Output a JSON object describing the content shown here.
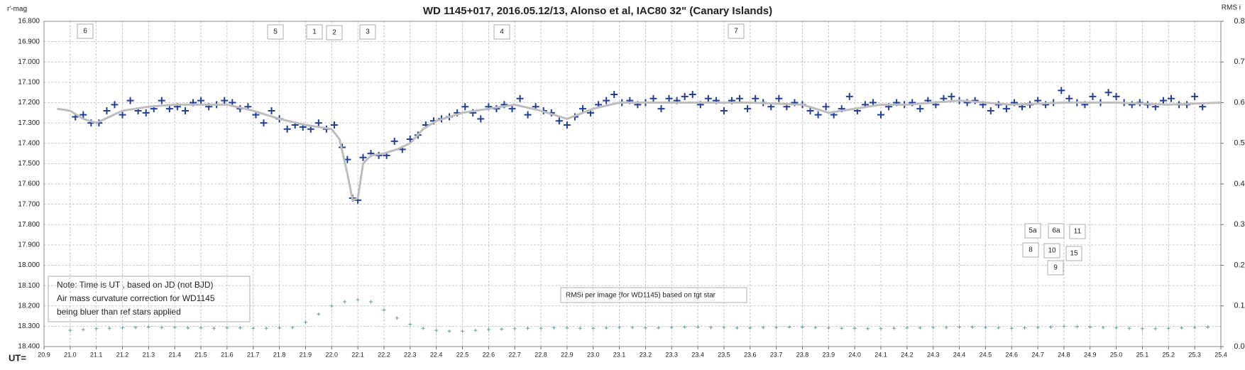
{
  "chart_data": {
    "type": "scatter",
    "title": "WD 1145+017,  2016.05.12/13,  Alonso  et al, IAC80  32\" (Canary Islands)",
    "y_label": "r'-mag",
    "y2_label": "RMS i",
    "x_label": "UT=",
    "note": [
      "Note: Time is UT , based on JD (not BJD)",
      "Air mass  curvature correction for WD1145",
      "being bluer than ref stars applied"
    ],
    "annotations": [
      "6",
      "5",
      "1",
      "2",
      "3",
      "4",
      "7",
      "5a",
      "6a",
      "11",
      "8",
      "10",
      "15",
      "9"
    ],
    "xlim": [
      20.9,
      25.4
    ],
    "xticks": [
      20.9,
      {
        "value": 21,
        "label": "21.0"
      },
      21.1,
      21.2,
      21.3,
      21.4,
      21.5,
      21.6,
      21.7,
      21.8,
      21.9,
      {
        "value": 22,
        "label": "22.0"
      },
      22.1,
      22.2,
      22.3,
      22.4,
      22.5,
      22.6,
      22.7,
      22.8,
      22.9,
      {
        "value": 23,
        "label": "23.0"
      },
      23.1,
      23.2,
      23.3,
      23.4,
      23.5,
      23.6,
      23.7,
      23.8,
      23.9,
      {
        "value": 24,
        "label": "24.0"
      },
      24.1,
      24.2,
      24.3,
      24.4,
      24.5,
      24.6,
      24.7,
      24.8,
      24.9,
      {
        "value": 25,
        "label": "25.0"
      },
      25.1,
      25.2,
      25.3,
      25.4
    ],
    "ylim": [
      18.4,
      16.8
    ],
    "yticks": [
      {
        "value": 16.8,
        "label": "16.800"
      },
      {
        "value": 16.9,
        "label": "16.900"
      },
      {
        "value": 17,
        "label": "17.000"
      },
      {
        "value": 17.1,
        "label": "17.100"
      },
      {
        "value": 17.2,
        "label": "17.200"
      },
      {
        "value": 17.3,
        "label": "17.300"
      },
      {
        "value": 17.4,
        "label": "17.400"
      },
      {
        "value": 17.5,
        "label": "17.500"
      },
      {
        "value": 17.6,
        "label": "17.600"
      },
      {
        "value": 17.7,
        "label": "17.700"
      },
      {
        "value": 17.8,
        "label": "17.800"
      },
      {
        "value": 17.9,
        "label": "17.900"
      },
      {
        "value": 18,
        "label": "18.000"
      },
      {
        "value": 18.1,
        "label": "18.100"
      },
      {
        "value": 18.2,
        "label": "18.200"
      },
      {
        "value": 18.3,
        "label": "18.300"
      },
      {
        "value": 18.4,
        "label": "18.400"
      }
    ],
    "y2lim": [
      0,
      0.8
    ],
    "y2ticks": [
      {
        "value": 0,
        "label": "0.0"
      },
      0.1,
      0.2,
      0.3,
      0.4,
      0.5,
      0.6,
      0.7,
      0.8
    ],
    "grid": true,
    "series": [
      {
        "color": "#1f3f9a",
        "marker": "cross",
        "x": [
          21.02,
          21.05,
          21.08,
          21.11,
          21.14,
          21.17,
          21.2,
          21.23,
          21.26,
          21.29,
          21.32,
          21.35,
          21.38,
          21.41,
          21.44,
          21.47,
          21.5,
          21.53,
          21.56,
          21.59,
          21.62,
          21.65,
          21.68,
          21.71,
          21.74,
          21.77,
          21.8,
          21.83,
          21.86,
          21.89,
          21.92,
          21.95,
          21.98,
          22.01,
          22.04,
          22.06,
          22.08,
          22.1,
          22.12,
          22.15,
          22.18,
          22.21,
          22.24,
          22.27,
          22.3,
          22.33,
          22.36,
          22.39,
          22.42,
          22.45,
          22.48,
          22.51,
          22.54,
          22.57,
          22.6,
          22.63,
          22.66,
          22.69,
          22.72,
          22.75,
          22.78,
          22.81,
          22.84,
          22.87,
          22.9,
          22.93,
          22.96,
          22.99,
          23.02,
          23.05,
          23.08,
          23.11,
          23.14,
          23.17,
          23.2,
          23.23,
          23.26,
          23.29,
          23.32,
          23.35,
          23.38,
          23.41,
          23.44,
          23.47,
          23.5,
          23.53,
          23.56,
          23.59,
          23.62,
          23.65,
          23.68,
          23.71,
          23.74,
          23.77,
          23.8,
          23.83,
          23.86,
          23.89,
          23.92,
          23.95,
          23.98,
          24.01,
          24.04,
          24.07,
          24.1,
          24.13,
          24.16,
          24.19,
          24.22,
          24.25,
          24.28,
          24.31,
          24.34,
          24.37,
          24.4,
          24.43,
          24.46,
          24.49,
          24.52,
          24.55,
          24.58,
          24.61,
          24.64,
          24.67,
          24.7,
          24.73,
          24.76,
          24.79,
          24.82,
          24.85,
          24.88,
          24.91,
          24.94,
          24.97,
          25.0,
          25.03,
          25.06,
          25.09,
          25.12,
          25.15,
          25.18,
          25.21,
          25.24,
          25.27,
          25.3,
          25.33
        ],
        "values": [
          17.27,
          17.26,
          17.3,
          17.3,
          17.24,
          17.21,
          17.26,
          17.19,
          17.24,
          17.25,
          17.23,
          17.19,
          17.23,
          17.22,
          17.24,
          17.2,
          17.19,
          17.22,
          17.21,
          17.19,
          17.2,
          17.23,
          17.22,
          17.26,
          17.3,
          17.24,
          17.28,
          17.33,
          17.31,
          17.32,
          17.33,
          17.3,
          17.33,
          17.31,
          17.42,
          17.48,
          17.67,
          17.68,
          17.47,
          17.45,
          17.46,
          17.46,
          17.39,
          17.43,
          17.38,
          17.36,
          17.31,
          17.29,
          17.28,
          17.27,
          17.25,
          17.22,
          17.25,
          17.28,
          17.22,
          17.23,
          17.21,
          17.23,
          17.18,
          17.26,
          17.22,
          17.24,
          17.25,
          17.29,
          17.31,
          17.27,
          17.23,
          17.25,
          17.21,
          17.19,
          17.16,
          17.2,
          17.19,
          17.21,
          17.2,
          17.18,
          17.23,
          17.18,
          17.19,
          17.17,
          17.16,
          17.21,
          17.18,
          17.19,
          17.24,
          17.19,
          17.18,
          17.23,
          17.18,
          17.2,
          17.22,
          17.18,
          17.22,
          17.2,
          17.21,
          17.24,
          17.26,
          17.22,
          17.26,
          17.23,
          17.17,
          17.24,
          17.21,
          17.2,
          17.26,
          17.22,
          17.2,
          17.21,
          17.2,
          17.23,
          17.19,
          17.21,
          17.18,
          17.17,
          17.19,
          17.2,
          17.19,
          17.21,
          17.24,
          17.21,
          17.23,
          17.2,
          17.22,
          17.21,
          17.19,
          17.21,
          17.2,
          17.14,
          17.18,
          17.2,
          17.21,
          17.17,
          17.2,
          17.15,
          17.17,
          17.2,
          17.21,
          17.2,
          17.21,
          17.22,
          17.19,
          17.18,
          17.21,
          17.21,
          17.17,
          17.22
        ]
      },
      {
        "color": "#bdbdbd",
        "marker": "line",
        "x": [
          20.95,
          21.0,
          21.05,
          21.1,
          21.15,
          21.2,
          21.3,
          21.4,
          21.5,
          21.6,
          21.7,
          21.8,
          21.9,
          22.0,
          22.03,
          22.06,
          22.08,
          22.1,
          22.12,
          22.15,
          22.2,
          22.25,
          22.3,
          22.35,
          22.4,
          22.5,
          22.6,
          22.7,
          22.8,
          22.9,
          23.0,
          23.1,
          23.2,
          23.4,
          23.6,
          23.8,
          23.9,
          24.0,
          24.1,
          24.2,
          24.4,
          24.6,
          24.8,
          25.0,
          25.2,
          25.4
        ],
        "values": [
          17.23,
          17.24,
          17.28,
          17.3,
          17.27,
          17.24,
          17.22,
          17.21,
          17.21,
          17.21,
          17.24,
          17.28,
          17.31,
          17.33,
          17.38,
          17.55,
          17.68,
          17.67,
          17.5,
          17.46,
          17.45,
          17.43,
          17.4,
          17.33,
          17.29,
          17.25,
          17.23,
          17.21,
          17.24,
          17.28,
          17.23,
          17.2,
          17.2,
          17.2,
          17.2,
          17.21,
          17.25,
          17.23,
          17.21,
          17.21,
          17.19,
          17.21,
          17.2,
          17.2,
          17.21,
          17.2
        ]
      },
      {
        "name": "RMSi per image (for WD1145) based on tgt star",
        "color": "#5f9ea0",
        "marker": "plus",
        "axis": "y2",
        "x": [
          21.0,
          21.05,
          21.1,
          21.15,
          21.2,
          21.25,
          21.3,
          21.35,
          21.4,
          21.45,
          21.5,
          21.55,
          21.6,
          21.65,
          21.7,
          21.75,
          21.8,
          21.85,
          21.9,
          21.95,
          22.0,
          22.05,
          22.1,
          22.15,
          22.2,
          22.25,
          22.3,
          22.35,
          22.4,
          22.45,
          22.5,
          22.55,
          22.6,
          22.65,
          22.7,
          22.75,
          22.8,
          22.85,
          22.9,
          22.95,
          23.0,
          23.05,
          23.1,
          23.15,
          23.2,
          23.25,
          23.3,
          23.35,
          23.4,
          23.45,
          23.5,
          23.55,
          23.6,
          23.65,
          23.7,
          23.75,
          23.8,
          23.85,
          23.9,
          23.95,
          24.0,
          24.05,
          24.1,
          24.15,
          24.2,
          24.25,
          24.3,
          24.35,
          24.4,
          24.45,
          24.5,
          24.55,
          24.6,
          24.65,
          24.7,
          24.75,
          24.8,
          24.85,
          24.9,
          24.95,
          25.0,
          25.05,
          25.1,
          25.15,
          25.2,
          25.25,
          25.3,
          25.35
        ],
        "values": [
          0.04,
          0.042,
          0.044,
          0.045,
          0.046,
          0.047,
          0.048,
          0.047,
          0.047,
          0.046,
          0.046,
          0.045,
          0.046,
          0.046,
          0.045,
          0.045,
          0.046,
          0.047,
          0.06,
          0.08,
          0.1,
          0.11,
          0.115,
          0.11,
          0.09,
          0.07,
          0.055,
          0.045,
          0.04,
          0.038,
          0.038,
          0.04,
          0.042,
          0.043,
          0.044,
          0.045,
          0.045,
          0.046,
          0.046,
          0.045,
          0.045,
          0.046,
          0.047,
          0.047,
          0.046,
          0.046,
          0.047,
          0.048,
          0.048,
          0.047,
          0.047,
          0.046,
          0.046,
          0.047,
          0.047,
          0.048,
          0.048,
          0.047,
          0.046,
          0.045,
          0.045,
          0.044,
          0.044,
          0.045,
          0.046,
          0.046,
          0.047,
          0.047,
          0.048,
          0.048,
          0.047,
          0.046,
          0.045,
          0.046,
          0.047,
          0.048,
          0.05,
          0.049,
          0.048,
          0.047,
          0.046,
          0.045,
          0.044,
          0.044,
          0.045,
          0.046,
          0.047,
          0.048
        ]
      }
    ]
  }
}
